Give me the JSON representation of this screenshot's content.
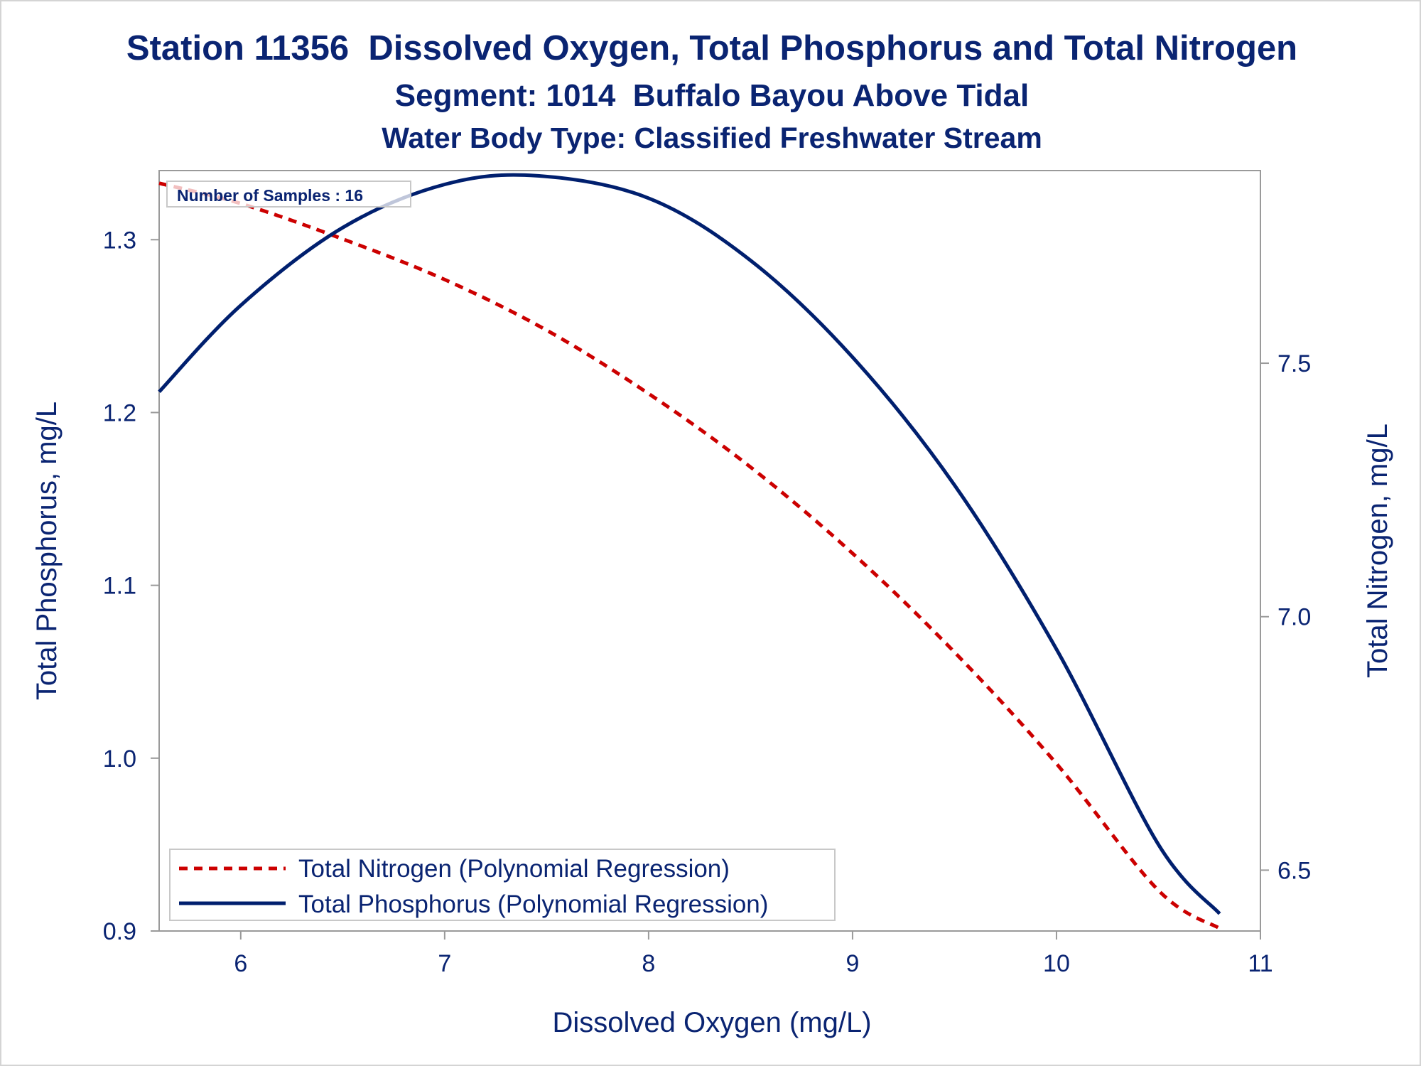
{
  "chart_data": {
    "type": "line",
    "title": "Station 11356  Dissolved Oxygen, Total Phosphorus and Total Nitrogen",
    "subtitle": "Segment: 1014  Buffalo Bayou Above Tidal",
    "subtitle2": "Water Body Type: Classified Freshwater Stream",
    "annotation": "Number of Samples : 16",
    "xlabel": "Dissolved Oxygen (mg/L)",
    "ylabel": "Total Phosphorus, mg/L",
    "y2label": "Total Nitrogen, mg/L",
    "xlim": [
      5.6,
      11
    ],
    "ylim": [
      0.9,
      1.34
    ],
    "y2lim": [
      6.38,
      7.88
    ],
    "x_ticks": [
      "6",
      "7",
      "8",
      "9",
      "10",
      "11"
    ],
    "y_ticks": [
      "0.9",
      "1.0",
      "1.1",
      "1.2",
      "1.3"
    ],
    "y2_ticks": [
      "6.5",
      "7.0",
      "7.5"
    ],
    "grid": false,
    "legend_position": "bottom-left",
    "series": [
      {
        "name": "Total Nitrogen (Polynomial Regression)",
        "axis": "right",
        "style": "dashed",
        "color": "#cc0000",
        "x": [
          5.6,
          6.0,
          6.5,
          7.0,
          7.5,
          8.0,
          8.5,
          9.0,
          9.5,
          10.0,
          10.5,
          10.8
        ],
        "y": [
          7.855,
          7.815,
          7.745,
          7.665,
          7.565,
          7.44,
          7.295,
          7.125,
          6.93,
          6.71,
          6.46,
          6.385
        ]
      },
      {
        "name": "Total Phosphorus (Polynomial Regression)",
        "axis": "left",
        "style": "solid",
        "color": "#001f6e",
        "x": [
          5.6,
          6.0,
          6.5,
          7.0,
          7.45,
          8.0,
          8.5,
          9.0,
          9.5,
          10.0,
          10.5,
          10.8
        ],
        "y": [
          1.212,
          1.262,
          1.307,
          1.332,
          1.337,
          1.324,
          1.288,
          1.232,
          1.158,
          1.063,
          0.95,
          0.91
        ]
      }
    ]
  }
}
